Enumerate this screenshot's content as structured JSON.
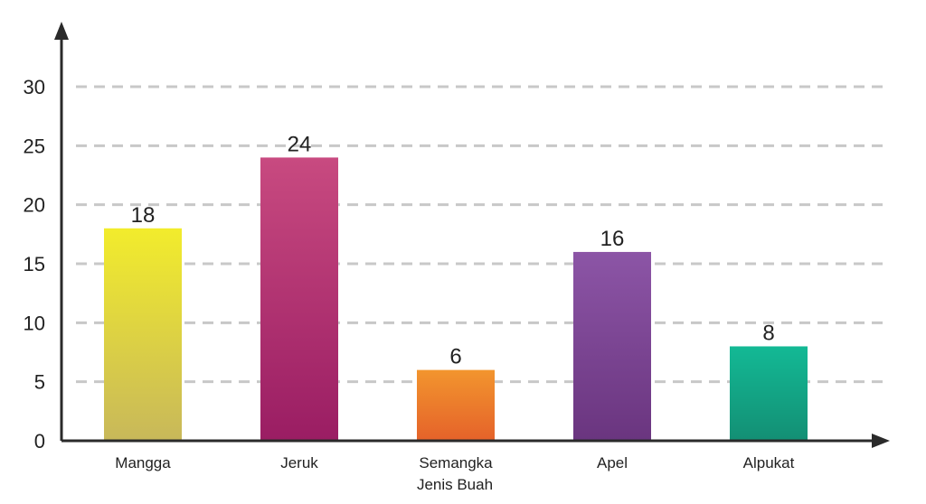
{
  "chart_data": {
    "type": "bar",
    "categories": [
      "Mangga",
      "Jeruk",
      "Semangka",
      "Apel",
      "Alpukat"
    ],
    "values": [
      18,
      24,
      6,
      16,
      8
    ],
    "data_labels": [
      "18",
      "24",
      "6",
      "16",
      "8"
    ],
    "xlabel": "Jenis Buah",
    "ylabel": "",
    "ylim": [
      0,
      30
    ],
    "yticks": [
      0,
      5,
      10,
      15,
      20,
      25,
      30
    ],
    "grid": true,
    "bar_colors": [
      [
        "#f2ec2c",
        "#c8b85a"
      ],
      [
        "#c84a80",
        "#9a1d63"
      ],
      [
        "#f2952e",
        "#e5622a"
      ],
      [
        "#8c55a6",
        "#6a357f"
      ],
      [
        "#13b995",
        "#138f74"
      ]
    ]
  }
}
